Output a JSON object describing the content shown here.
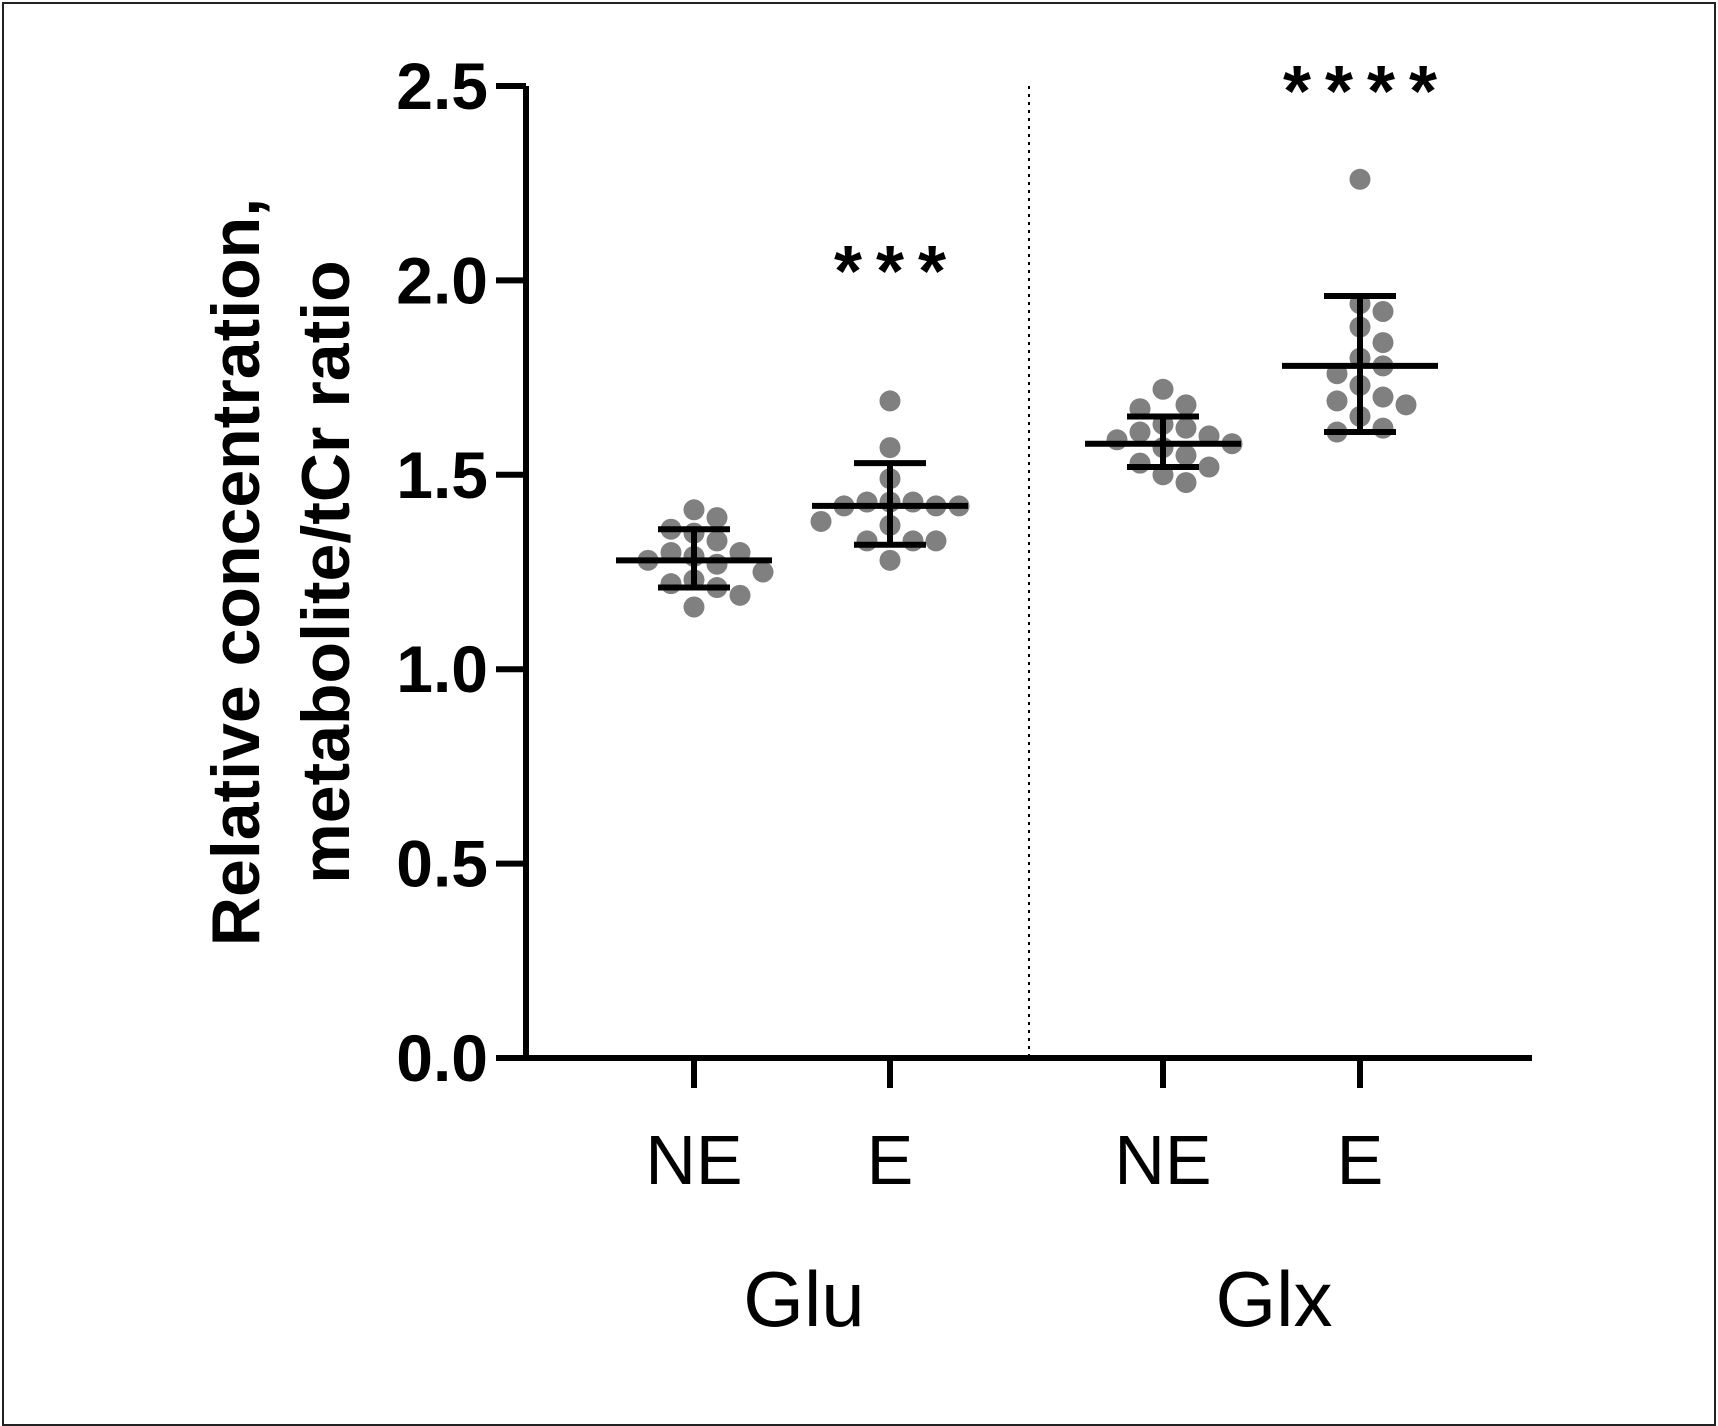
{
  "chart_data": {
    "type": "scatter",
    "ylabel_lines": [
      "Relative concentration,",
      "metabolite/tCr ratio"
    ],
    "ylim": [
      0.0,
      2.5
    ],
    "yticks": [
      "0.0",
      "0.5",
      "1.0",
      "1.5",
      "2.0",
      "2.5"
    ],
    "grid": false,
    "groups": [
      {
        "name": "Glu",
        "significance": "***",
        "series": [
          {
            "category": "NE",
            "points": [
              1.41,
              1.39,
              1.36,
              1.35,
              1.33,
              1.3,
              1.3,
              1.29,
              1.28,
              1.27,
              1.25,
              1.23,
              1.22,
              1.21,
              1.19,
              1.16
            ],
            "mean": 1.28,
            "err_low": 1.21,
            "err_high": 1.36
          },
          {
            "category": "E",
            "points": [
              1.69,
              1.57,
              1.49,
              1.43,
              1.43,
              1.43,
              1.42,
              1.42,
              1.42,
              1.38,
              1.37,
              1.33,
              1.33,
              1.33,
              1.28
            ],
            "mean": 1.42,
            "err_low": 1.32,
            "err_high": 1.53
          }
        ]
      },
      {
        "name": "Glx",
        "significance": "****",
        "series": [
          {
            "category": "NE",
            "points": [
              1.72,
              1.68,
              1.67,
              1.63,
              1.62,
              1.61,
              1.6,
              1.59,
              1.58,
              1.57,
              1.55,
              1.53,
              1.52,
              1.5,
              1.48
            ],
            "mean": 1.58,
            "err_low": 1.52,
            "err_high": 1.65
          },
          {
            "category": "E",
            "points": [
              2.26,
              1.94,
              1.92,
              1.88,
              1.84,
              1.8,
              1.78,
              1.76,
              1.73,
              1.7,
              1.69,
              1.68,
              1.65,
              1.62,
              1.61
            ],
            "mean": 1.78,
            "err_low": 1.61,
            "err_high": 1.96
          }
        ]
      }
    ],
    "colors": {
      "point": "#808080",
      "axis": "#000000",
      "bars": "#000000"
    }
  }
}
